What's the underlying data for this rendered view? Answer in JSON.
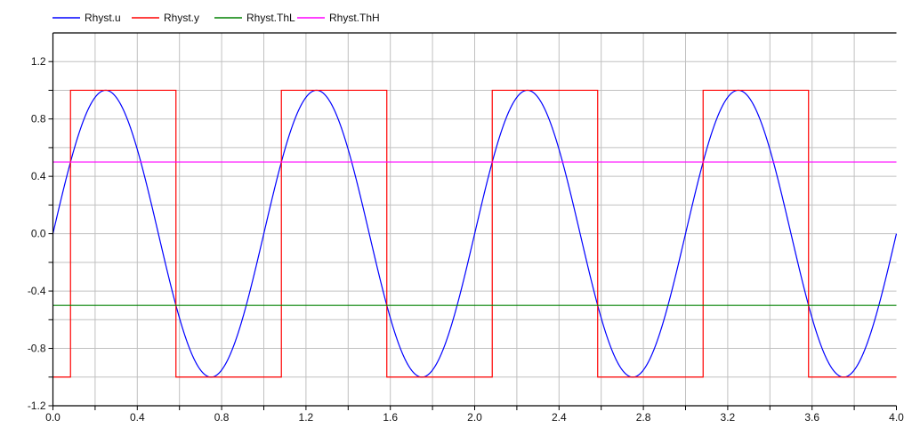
{
  "chart_data": {
    "type": "line",
    "xlim": [
      0,
      4.0
    ],
    "ylim": [
      -1.2,
      1.4
    ],
    "grid": true,
    "legend_position": "top",
    "x_ticks": [
      "0.0",
      "0.4",
      "0.8",
      "1.2",
      "1.6",
      "2.0",
      "2.4",
      "2.8",
      "3.2",
      "3.6",
      "4.0"
    ],
    "y_ticks": [
      "1.2",
      "0.8",
      "0.4",
      "0.0",
      "-0.4",
      "-0.8",
      "-1.2"
    ],
    "series": [
      {
        "name": "Rhyst.u",
        "color": "#0000ff",
        "function": "sin(2*pi*t)",
        "amplitude": 1.0,
        "frequency": 1.0
      },
      {
        "name": "Rhyst.y",
        "color": "#ff0000",
        "step_times": [
          0.0833,
          0.5833,
          1.0833,
          1.5833,
          2.0833,
          2.5833,
          3.0833,
          3.5833
        ],
        "initial": -1,
        "levels": [
          -1,
          1
        ]
      },
      {
        "name": "Rhyst.ThL",
        "color": "#008000",
        "value": -0.5
      },
      {
        "name": "Rhyst.ThH",
        "color": "#ff00ff",
        "value": 0.5
      }
    ]
  }
}
